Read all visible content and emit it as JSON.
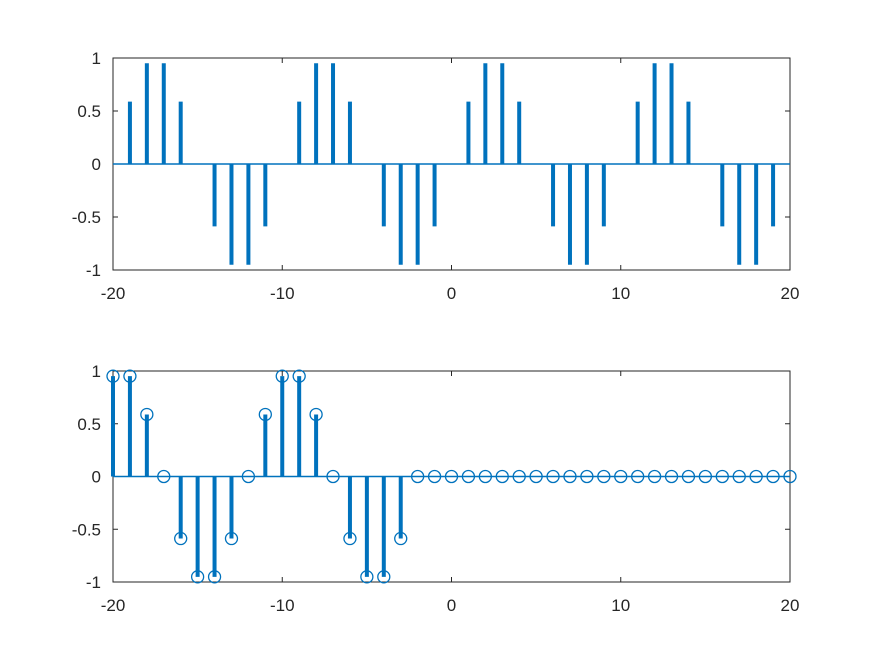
{
  "figure": {
    "background": "#ffffff"
  },
  "chart_data": [
    {
      "type": "stem",
      "xlim": [
        -20,
        20
      ],
      "ylim": [
        -1,
        1
      ],
      "xticks": [
        -20,
        -10,
        0,
        10,
        20
      ],
      "yticks": [
        -1,
        -0.5,
        0,
        0.5,
        1
      ],
      "xtick_labels": [
        "-20",
        "-10",
        "0",
        "10",
        "20"
      ],
      "ytick_labels": [
        "-1",
        "-0.5",
        "0",
        "0.5",
        "1"
      ],
      "grid": false,
      "color": "#0072bd",
      "marker": "none",
      "x": [
        -20,
        -19,
        -18,
        -17,
        -16,
        -15,
        -14,
        -13,
        -12,
        -11,
        -10,
        -9,
        -8,
        -7,
        -6,
        -5,
        -4,
        -3,
        -2,
        -1,
        0,
        1,
        2,
        3,
        4,
        5,
        6,
        7,
        8,
        9,
        10,
        11,
        12,
        13,
        14,
        15,
        16,
        17,
        18,
        19,
        20
      ],
      "y": [
        0,
        0.588,
        0.951,
        0.951,
        0.588,
        0,
        -0.588,
        -0.951,
        -0.951,
        -0.588,
        0,
        0.588,
        0.951,
        0.951,
        0.588,
        0,
        -0.588,
        -0.951,
        -0.951,
        -0.588,
        0,
        0.588,
        0.951,
        0.951,
        0.588,
        0,
        -0.588,
        -0.951,
        -0.951,
        -0.588,
        0,
        0.588,
        0.951,
        0.951,
        0.588,
        0,
        -0.588,
        -0.951,
        -0.951,
        -0.588,
        0
      ]
    },
    {
      "type": "stem",
      "xlim": [
        -20,
        20
      ],
      "ylim": [
        -1,
        1
      ],
      "xticks": [
        -20,
        -10,
        0,
        10,
        20
      ],
      "yticks": [
        -1,
        -0.5,
        0,
        0.5,
        1
      ],
      "xtick_labels": [
        "-20",
        "-10",
        "0",
        "10",
        "20"
      ],
      "ytick_labels": [
        "-1",
        "-0.5",
        "0",
        "0.5",
        "1"
      ],
      "grid": false,
      "color": "#0072bd",
      "marker": "circle",
      "x": [
        -20,
        -19,
        -18,
        -17,
        -16,
        -15,
        -14,
        -13,
        -12,
        -11,
        -10,
        -9,
        -8,
        -7,
        -6,
        -5,
        -4,
        -3,
        -2,
        -1,
        0,
        1,
        2,
        3,
        4,
        5,
        6,
        7,
        8,
        9,
        10,
        11,
        12,
        13,
        14,
        15,
        16,
        17,
        18,
        19,
        20
      ],
      "y": [
        0.951,
        0.951,
        0.588,
        0,
        -0.588,
        -0.951,
        -0.951,
        -0.588,
        0,
        0.588,
        0.951,
        0.951,
        0.588,
        0,
        -0.588,
        -0.951,
        -0.951,
        -0.588,
        0,
        0,
        0,
        0,
        0,
        0,
        0,
        0,
        0,
        0,
        0,
        0,
        0,
        0,
        0,
        0,
        0,
        0,
        0,
        0,
        0,
        0,
        0
      ]
    }
  ]
}
